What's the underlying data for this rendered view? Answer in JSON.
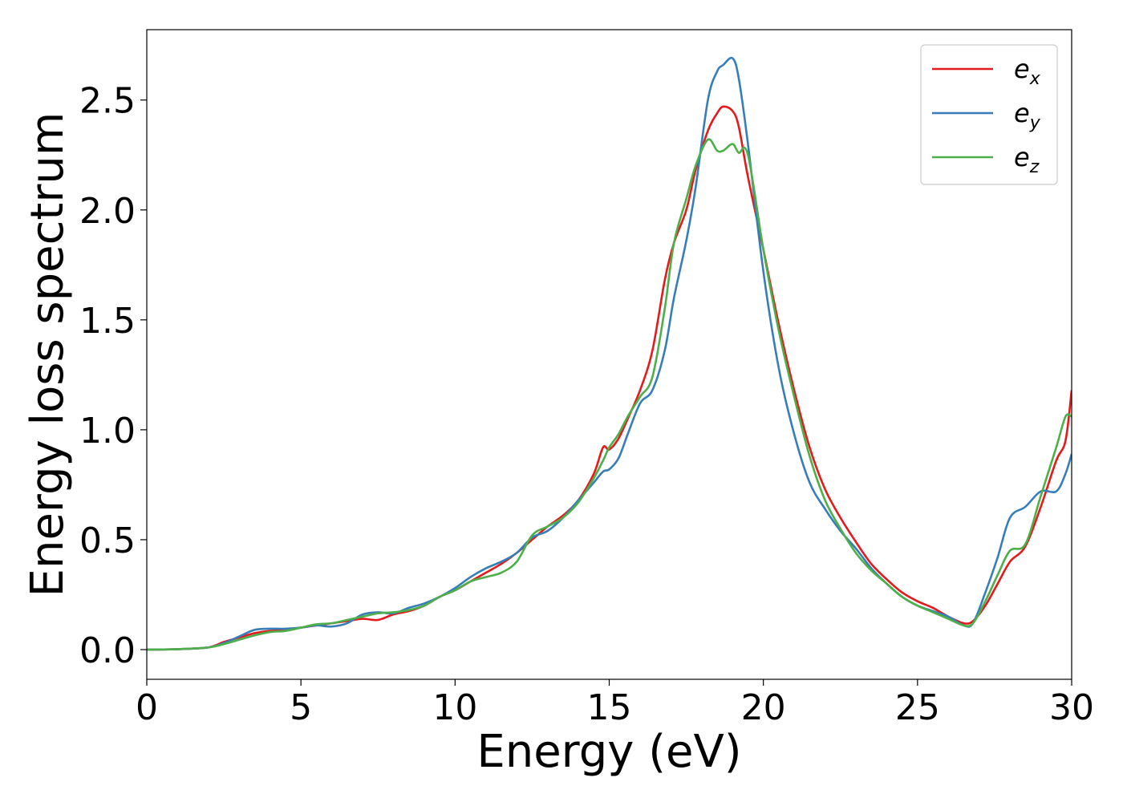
{
  "chart_data": {
    "type": "line",
    "xlabel": "Energy (eV)",
    "ylabel": "Energy loss spectrum",
    "xlim": [
      0,
      30
    ],
    "ylim": [
      -0.135,
      2.82
    ],
    "xticks": [
      "0",
      "5",
      "10",
      "15",
      "20",
      "25",
      "30"
    ],
    "yticks": [
      "0.0",
      "0.5",
      "1.0",
      "1.5",
      "2.0",
      "2.5"
    ],
    "grid": false,
    "legend_position": "top-right",
    "series": [
      {
        "name": "e_x",
        "legend_base": "e",
        "legend_sub": "x",
        "color": "#e41a1c",
        "points": [
          [
            0,
            0
          ],
          [
            1,
            0.002
          ],
          [
            2,
            0.01
          ],
          [
            2.5,
            0.035
          ],
          [
            3,
            0.055
          ],
          [
            3.5,
            0.075
          ],
          [
            4,
            0.085
          ],
          [
            4.5,
            0.09
          ],
          [
            5,
            0.1
          ],
          [
            5.5,
            0.11
          ],
          [
            6,
            0.12
          ],
          [
            6.5,
            0.13
          ],
          [
            7,
            0.14
          ],
          [
            7.5,
            0.135
          ],
          [
            8,
            0.16
          ],
          [
            8.5,
            0.175
          ],
          [
            9,
            0.2
          ],
          [
            9.5,
            0.24
          ],
          [
            10,
            0.27
          ],
          [
            10.5,
            0.31
          ],
          [
            11,
            0.35
          ],
          [
            11.5,
            0.39
          ],
          [
            12,
            0.44
          ],
          [
            12.5,
            0.5
          ],
          [
            13,
            0.56
          ],
          [
            13.5,
            0.61
          ],
          [
            14,
            0.68
          ],
          [
            14.5,
            0.8
          ],
          [
            14.8,
            0.92
          ],
          [
            15,
            0.91
          ],
          [
            15.3,
            0.96
          ],
          [
            15.6,
            1.05
          ],
          [
            16,
            1.18
          ],
          [
            16.4,
            1.36
          ],
          [
            16.8,
            1.68
          ],
          [
            17.1,
            1.85
          ],
          [
            17.5,
            2.0
          ],
          [
            17.8,
            2.18
          ],
          [
            18.2,
            2.36
          ],
          [
            18.5,
            2.44
          ],
          [
            18.7,
            2.47
          ],
          [
            19,
            2.45
          ],
          [
            19.2,
            2.38
          ],
          [
            19.5,
            2.15
          ],
          [
            20,
            1.82
          ],
          [
            20.5,
            1.48
          ],
          [
            21,
            1.18
          ],
          [
            21.5,
            0.92
          ],
          [
            22,
            0.73
          ],
          [
            22.5,
            0.6
          ],
          [
            23,
            0.49
          ],
          [
            23.5,
            0.39
          ],
          [
            24,
            0.32
          ],
          [
            24.5,
            0.26
          ],
          [
            25,
            0.22
          ],
          [
            25.5,
            0.19
          ],
          [
            26,
            0.15
          ],
          [
            26.5,
            0.12
          ],
          [
            26.8,
            0.13
          ],
          [
            27.2,
            0.2
          ],
          [
            27.6,
            0.3
          ],
          [
            28,
            0.4
          ],
          [
            28.5,
            0.47
          ],
          [
            29,
            0.65
          ],
          [
            29.5,
            0.86
          ],
          [
            29.8,
            0.95
          ],
          [
            30,
            1.18
          ]
        ]
      },
      {
        "name": "e_y",
        "legend_base": "e",
        "legend_sub": "y",
        "color": "#377eb8",
        "points": [
          [
            0,
            0
          ],
          [
            1,
            0.002
          ],
          [
            2,
            0.01
          ],
          [
            2.5,
            0.03
          ],
          [
            3,
            0.06
          ],
          [
            3.5,
            0.09
          ],
          [
            4,
            0.095
          ],
          [
            4.5,
            0.095
          ],
          [
            5,
            0.1
          ],
          [
            5.5,
            0.11
          ],
          [
            6,
            0.105
          ],
          [
            6.5,
            0.12
          ],
          [
            7,
            0.16
          ],
          [
            7.5,
            0.17
          ],
          [
            8,
            0.165
          ],
          [
            8.5,
            0.19
          ],
          [
            9,
            0.21
          ],
          [
            9.5,
            0.24
          ],
          [
            10,
            0.28
          ],
          [
            10.5,
            0.33
          ],
          [
            11,
            0.37
          ],
          [
            11.5,
            0.4
          ],
          [
            12,
            0.44
          ],
          [
            12.5,
            0.51
          ],
          [
            13,
            0.54
          ],
          [
            13.5,
            0.6
          ],
          [
            14,
            0.68
          ],
          [
            14.5,
            0.76
          ],
          [
            14.8,
            0.81
          ],
          [
            15,
            0.82
          ],
          [
            15.3,
            0.87
          ],
          [
            15.6,
            0.98
          ],
          [
            16,
            1.12
          ],
          [
            16.4,
            1.18
          ],
          [
            16.8,
            1.36
          ],
          [
            17.1,
            1.6
          ],
          [
            17.5,
            1.86
          ],
          [
            17.8,
            2.1
          ],
          [
            18.2,
            2.5
          ],
          [
            18.5,
            2.63
          ],
          [
            18.7,
            2.66
          ],
          [
            19,
            2.69
          ],
          [
            19.2,
            2.6
          ],
          [
            19.5,
            2.3
          ],
          [
            20,
            1.72
          ],
          [
            20.5,
            1.28
          ],
          [
            21,
            0.98
          ],
          [
            21.5,
            0.76
          ],
          [
            22,
            0.64
          ],
          [
            22.5,
            0.54
          ],
          [
            23,
            0.46
          ],
          [
            23.5,
            0.37
          ],
          [
            24,
            0.3
          ],
          [
            24.5,
            0.24
          ],
          [
            25,
            0.2
          ],
          [
            25.5,
            0.175
          ],
          [
            26,
            0.15
          ],
          [
            26.5,
            0.11
          ],
          [
            26.8,
            0.12
          ],
          [
            27.2,
            0.26
          ],
          [
            27.6,
            0.42
          ],
          [
            28,
            0.6
          ],
          [
            28.5,
            0.65
          ],
          [
            29,
            0.72
          ],
          [
            29.5,
            0.72
          ],
          [
            29.8,
            0.8
          ],
          [
            30,
            0.89
          ]
        ]
      },
      {
        "name": "e_z",
        "legend_base": "e",
        "legend_sub": "z",
        "color": "#4daf4a",
        "points": [
          [
            0,
            0
          ],
          [
            1,
            0.002
          ],
          [
            2,
            0.01
          ],
          [
            2.5,
            0.025
          ],
          [
            3,
            0.045
          ],
          [
            3.5,
            0.065
          ],
          [
            4,
            0.08
          ],
          [
            4.5,
            0.085
          ],
          [
            5,
            0.1
          ],
          [
            5.5,
            0.115
          ],
          [
            6,
            0.12
          ],
          [
            6.5,
            0.135
          ],
          [
            7,
            0.15
          ],
          [
            7.5,
            0.165
          ],
          [
            8,
            0.17
          ],
          [
            8.5,
            0.18
          ],
          [
            9,
            0.2
          ],
          [
            9.5,
            0.24
          ],
          [
            10,
            0.27
          ],
          [
            10.5,
            0.31
          ],
          [
            11,
            0.33
          ],
          [
            11.5,
            0.35
          ],
          [
            12,
            0.4
          ],
          [
            12.5,
            0.52
          ],
          [
            13,
            0.56
          ],
          [
            13.5,
            0.6
          ],
          [
            14,
            0.67
          ],
          [
            14.5,
            0.78
          ],
          [
            14.8,
            0.86
          ],
          [
            15,
            0.92
          ],
          [
            15.3,
            0.98
          ],
          [
            15.6,
            1.06
          ],
          [
            16,
            1.15
          ],
          [
            16.4,
            1.24
          ],
          [
            16.8,
            1.55
          ],
          [
            17.1,
            1.85
          ],
          [
            17.5,
            2.05
          ],
          [
            17.8,
            2.2
          ],
          [
            18.2,
            2.32
          ],
          [
            18.5,
            2.27
          ],
          [
            18.7,
            2.27
          ],
          [
            19,
            2.3
          ],
          [
            19.2,
            2.26
          ],
          [
            19.5,
            2.25
          ],
          [
            20,
            1.82
          ],
          [
            20.5,
            1.45
          ],
          [
            21,
            1.15
          ],
          [
            21.5,
            0.88
          ],
          [
            22,
            0.68
          ],
          [
            22.5,
            0.55
          ],
          [
            23,
            0.44
          ],
          [
            23.5,
            0.36
          ],
          [
            24,
            0.3
          ],
          [
            24.5,
            0.24
          ],
          [
            25,
            0.2
          ],
          [
            25.5,
            0.17
          ],
          [
            26,
            0.14
          ],
          [
            26.5,
            0.11
          ],
          [
            26.8,
            0.12
          ],
          [
            27.2,
            0.22
          ],
          [
            27.6,
            0.34
          ],
          [
            28,
            0.45
          ],
          [
            28.5,
            0.48
          ],
          [
            29,
            0.7
          ],
          [
            29.5,
            0.92
          ],
          [
            29.8,
            1.06
          ],
          [
            30,
            1.06
          ]
        ]
      }
    ]
  }
}
